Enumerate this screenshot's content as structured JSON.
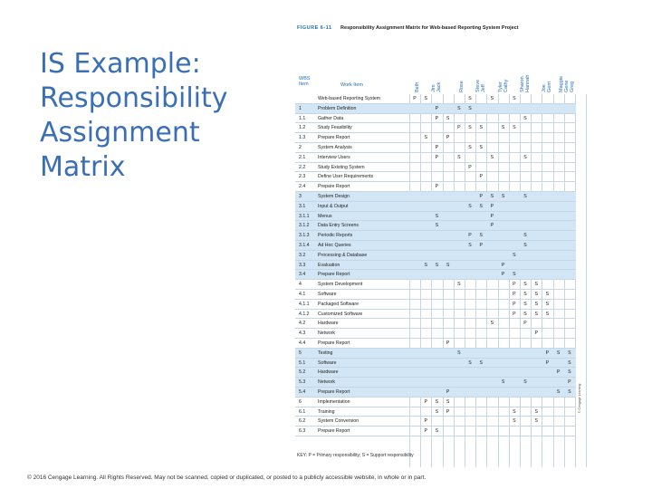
{
  "title_lines": [
    "IS Example:",
    "Responsibility",
    "Assignment",
    "Matrix"
  ],
  "figure": {
    "label": "FIGURE 6-11",
    "title": "Responsibility Assignment Matrix for Web-based Reporting System Project",
    "wbs_header": "WBS\nItem",
    "work_header": "Work Item",
    "people": [
      "Beth",
      "Jim\nJack",
      "Rose",
      "Steve\nJeff",
      "Tyler\nCathy",
      "Sharon\nHannah",
      "Joe\nGerri",
      "Maggie\nGene\nGreg"
    ],
    "rows": [
      {
        "wbs": "",
        "item": "Web-based Reporting System",
        "hl": false,
        "cells": [
          {
            "c": 0,
            "v": "P"
          },
          {
            "c": 1,
            "v": "S"
          },
          {
            "c": 5,
            "v": "S"
          },
          {
            "c": 7,
            "v": "S"
          },
          {
            "c": 9,
            "v": "S"
          }
        ]
      },
      {
        "wbs": "1",
        "item": "Problem Definition",
        "hl": true,
        "cells": [
          {
            "c": 2,
            "v": "P"
          },
          {
            "c": 4,
            "v": "S"
          },
          {
            "c": 5,
            "v": "S"
          }
        ]
      },
      {
        "wbs": "1.1",
        "item": "Gather Data",
        "hl": false,
        "cells": [
          {
            "c": 2,
            "v": "P"
          },
          {
            "c": 3,
            "v": "S"
          },
          {
            "c": 10,
            "v": "S"
          }
        ]
      },
      {
        "wbs": "1.2",
        "item": "Study Feasibility",
        "hl": false,
        "cells": [
          {
            "c": 4,
            "v": "P"
          },
          {
            "c": 5,
            "v": "S"
          },
          {
            "c": 6,
            "v": "S"
          },
          {
            "c": 8,
            "v": "S"
          },
          {
            "c": 9,
            "v": "S"
          }
        ]
      },
      {
        "wbs": "1.3",
        "item": "Prepare Report",
        "hl": false,
        "cells": [
          {
            "c": 1,
            "v": "S"
          },
          {
            "c": 3,
            "v": "P"
          }
        ]
      },
      {
        "wbs": "2",
        "item": "System Analysis",
        "hl": false,
        "cells": [
          {
            "c": 2,
            "v": "P"
          },
          {
            "c": 5,
            "v": "S"
          },
          {
            "c": 6,
            "v": "S"
          }
        ]
      },
      {
        "wbs": "2.1",
        "item": "Interview Users",
        "hl": false,
        "cells": [
          {
            "c": 2,
            "v": "P"
          },
          {
            "c": 4,
            "v": "S"
          },
          {
            "c": 7,
            "v": "S"
          },
          {
            "c": 10,
            "v": "S"
          }
        ]
      },
      {
        "wbs": "2.2",
        "item": "Study Existing System",
        "hl": false,
        "cells": [
          {
            "c": 5,
            "v": "P"
          }
        ]
      },
      {
        "wbs": "2.3",
        "item": "Define User Requirements",
        "hl": false,
        "cells": [
          {
            "c": 6,
            "v": "P"
          }
        ]
      },
      {
        "wbs": "2.4",
        "item": "Prepare Report",
        "hl": false,
        "cells": [
          {
            "c": 2,
            "v": "P"
          }
        ]
      },
      {
        "wbs": "3",
        "item": "System Design",
        "hl": true,
        "cells": [
          {
            "c": 6,
            "v": "P"
          },
          {
            "c": 7,
            "v": "S"
          },
          {
            "c": 8,
            "v": "S"
          },
          {
            "c": 10,
            "v": "S"
          }
        ]
      },
      {
        "wbs": "3.1",
        "item": "Input & Output",
        "hl": true,
        "cells": [
          {
            "c": 5,
            "v": "S"
          },
          {
            "c": 6,
            "v": "S"
          },
          {
            "c": 7,
            "v": "P"
          }
        ]
      },
      {
        "wbs": "3.1.1",
        "item": "Menus",
        "hl": true,
        "cells": [
          {
            "c": 2,
            "v": "S"
          },
          {
            "c": 7,
            "v": "P"
          }
        ]
      },
      {
        "wbs": "3.1.2",
        "item": "Data Entry Screens",
        "hl": true,
        "cells": [
          {
            "c": 2,
            "v": "S"
          },
          {
            "c": 7,
            "v": "P"
          }
        ]
      },
      {
        "wbs": "3.1.3",
        "item": "Periodic Reports",
        "hl": true,
        "cells": [
          {
            "c": 5,
            "v": "P"
          },
          {
            "c": 6,
            "v": "S"
          },
          {
            "c": 10,
            "v": "S"
          }
        ]
      },
      {
        "wbs": "3.1.4",
        "item": "Ad Hoc Queries",
        "hl": true,
        "cells": [
          {
            "c": 5,
            "v": "S"
          },
          {
            "c": 6,
            "v": "P"
          },
          {
            "c": 10,
            "v": "S"
          }
        ]
      },
      {
        "wbs": "3.2",
        "item": "Processing & Database",
        "hl": true,
        "cells": [
          {
            "c": 9,
            "v": "S"
          }
        ]
      },
      {
        "wbs": "3.3",
        "item": "Evaluation",
        "hl": true,
        "cells": [
          {
            "c": 1,
            "v": "S"
          },
          {
            "c": 2,
            "v": "S"
          },
          {
            "c": 3,
            "v": "S"
          },
          {
            "c": 8,
            "v": "P"
          }
        ]
      },
      {
        "wbs": "3.4",
        "item": "Prepare Report",
        "hl": true,
        "cells": [
          {
            "c": 8,
            "v": "P"
          },
          {
            "c": 9,
            "v": "S"
          }
        ]
      },
      {
        "wbs": "4",
        "item": "System Development",
        "hl": false,
        "cells": [
          {
            "c": 4,
            "v": "S"
          },
          {
            "c": 9,
            "v": "P"
          },
          {
            "c": 10,
            "v": "S"
          },
          {
            "c": 11,
            "v": "S"
          }
        ]
      },
      {
        "wbs": "4.1",
        "item": "Software",
        "hl": false,
        "cells": [
          {
            "c": 9,
            "v": "P"
          },
          {
            "c": 10,
            "v": "S"
          },
          {
            "c": 11,
            "v": "S"
          },
          {
            "c": 12,
            "v": "S"
          }
        ]
      },
      {
        "wbs": "4.1.1",
        "item": "Packaged Software",
        "hl": false,
        "cells": [
          {
            "c": 9,
            "v": "P"
          },
          {
            "c": 10,
            "v": "S"
          },
          {
            "c": 11,
            "v": "S"
          },
          {
            "c": 12,
            "v": "S"
          }
        ]
      },
      {
        "wbs": "4.1.2",
        "item": "Customized Software",
        "hl": false,
        "cells": [
          {
            "c": 9,
            "v": "P"
          },
          {
            "c": 10,
            "v": "S"
          },
          {
            "c": 11,
            "v": "S"
          },
          {
            "c": 12,
            "v": "S"
          }
        ]
      },
      {
        "wbs": "4.2",
        "item": "Hardware",
        "hl": false,
        "cells": [
          {
            "c": 7,
            "v": "S"
          },
          {
            "c": 10,
            "v": "P"
          }
        ]
      },
      {
        "wbs": "4.3",
        "item": "Network",
        "hl": false,
        "cells": [
          {
            "c": 11,
            "v": "P"
          }
        ]
      },
      {
        "wbs": "4.4",
        "item": "Prepare Report",
        "hl": false,
        "cells": [
          {
            "c": 3,
            "v": "P"
          }
        ]
      },
      {
        "wbs": "5",
        "item": "Testing",
        "hl": true,
        "cells": [
          {
            "c": 4,
            "v": "S"
          },
          {
            "c": 12,
            "v": "P"
          },
          {
            "c": 13,
            "v": "S"
          },
          {
            "c": 14,
            "v": "S"
          }
        ]
      },
      {
        "wbs": "5.1",
        "item": "Software",
        "hl": true,
        "cells": [
          {
            "c": 5,
            "v": "S"
          },
          {
            "c": 6,
            "v": "S"
          },
          {
            "c": 12,
            "v": "P"
          },
          {
            "c": 14,
            "v": "S"
          }
        ]
      },
      {
        "wbs": "5.2",
        "item": "Hardware",
        "hl": true,
        "cells": [
          {
            "c": 13,
            "v": "P"
          },
          {
            "c": 14,
            "v": "S"
          }
        ]
      },
      {
        "wbs": "5.3",
        "item": "Network",
        "hl": true,
        "cells": [
          {
            "c": 8,
            "v": "S"
          },
          {
            "c": 10,
            "v": "S"
          },
          {
            "c": 14,
            "v": "P"
          }
        ]
      },
      {
        "wbs": "5.4",
        "item": "Prepare Report",
        "hl": true,
        "cells": [
          {
            "c": 3,
            "v": "P"
          },
          {
            "c": 13,
            "v": "S"
          },
          {
            "c": 14,
            "v": "S"
          }
        ]
      },
      {
        "wbs": "6",
        "item": "Implementation",
        "hl": false,
        "cells": [
          {
            "c": 1,
            "v": "P"
          },
          {
            "c": 2,
            "v": "S"
          },
          {
            "c": 3,
            "v": "S"
          }
        ]
      },
      {
        "wbs": "6.1",
        "item": "Training",
        "hl": false,
        "cells": [
          {
            "c": 2,
            "v": "S"
          },
          {
            "c": 3,
            "v": "P"
          },
          {
            "c": 9,
            "v": "S"
          },
          {
            "c": 11,
            "v": "S"
          }
        ]
      },
      {
        "wbs": "6.2",
        "item": "System Conversion",
        "hl": false,
        "cells": [
          {
            "c": 1,
            "v": "P"
          },
          {
            "c": 9,
            "v": "S"
          },
          {
            "c": 11,
            "v": "S"
          }
        ]
      },
      {
        "wbs": "6.3",
        "item": "Prepare Report",
        "hl": false,
        "cells": [
          {
            "c": 1,
            "v": "P"
          },
          {
            "c": 2,
            "v": "S"
          }
        ]
      }
    ],
    "key": "KEY: P = Primary responsibility; S = Support responsibility",
    "source": "© Cengage Learning"
  },
  "copyright": "© 2016 Cengage Learning. All Rights Reserved. May not be scanned, copied or duplicated, or posted to a publicly accessible website, in whole or in part."
}
